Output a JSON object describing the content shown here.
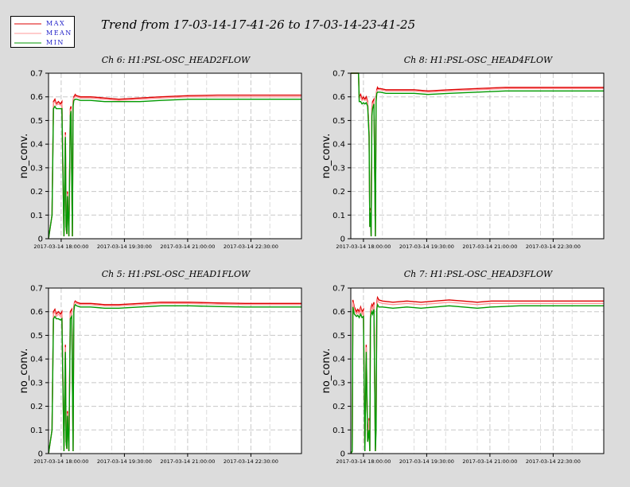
{
  "title": "Trend from 17-03-14-17-41-26 to 17-03-14-23-41-25",
  "legend": [
    {
      "label": "MAX",
      "color": "#dd0000"
    },
    {
      "label": "MEAN",
      "color": "#ff9999"
    },
    {
      "label": "MIN",
      "color": "#009900"
    }
  ],
  "chart_data": [
    {
      "type": "line",
      "title": "Ch 6: H1:PSL-OSC_HEAD2FLOW",
      "ylabel": "no_conv.",
      "xlabel": "",
      "ylim": [
        0,
        0.7
      ],
      "yticks": [
        "0",
        "0.1",
        "0.2",
        "0.3",
        "0.4",
        "0.5",
        "0.6",
        "0.7"
      ],
      "xlim": [
        0,
        360
      ],
      "xticks": [
        {
          "x": 18,
          "label": "2017-03-14 18:00:00"
        },
        {
          "x": 108,
          "label": "2017-03-14 19:30:00"
        },
        {
          "x": 198,
          "label": "2017-03-14 21:00:00"
        },
        {
          "x": 288,
          "label": "2017-03-14 22:30:00"
        }
      ],
      "grid": true,
      "series": [
        {
          "name": "MAX",
          "x": [
            0,
            5,
            7,
            9,
            11,
            14,
            17,
            19,
            22,
            24,
            25,
            26,
            27,
            29,
            31,
            32,
            34,
            35,
            36,
            38,
            39,
            40,
            45,
            60,
            80,
            100,
            130,
            160,
            200,
            240,
            280,
            320,
            360
          ],
          "values": [
            0,
            0.1,
            0.58,
            0.59,
            0.57,
            0.58,
            0.57,
            0.58,
            0.01,
            0.45,
            0.05,
            0.02,
            0.2,
            0.01,
            0.55,
            0.56,
            0.01,
            0.58,
            0.6,
            0.61,
            0.605,
            0.605,
            0.6,
            0.6,
            0.595,
            0.59,
            0.595,
            0.6,
            0.605,
            0.607,
            0.607,
            0.607,
            0.607
          ]
        },
        {
          "name": "MEAN",
          "x": [
            0,
            5,
            7,
            9,
            11,
            14,
            17,
            19,
            22,
            24,
            25,
            26,
            27,
            29,
            31,
            32,
            34,
            35,
            36,
            38,
            39,
            40,
            45,
            60,
            80,
            100,
            130,
            160,
            200,
            240,
            280,
            320,
            360
          ],
          "values": [
            0,
            0.1,
            0.575,
            0.58,
            0.565,
            0.57,
            0.565,
            0.57,
            0.01,
            0.44,
            0.05,
            0.02,
            0.19,
            0.01,
            0.54,
            0.55,
            0.01,
            0.57,
            0.595,
            0.6,
            0.6,
            0.6,
            0.595,
            0.595,
            0.59,
            0.585,
            0.59,
            0.595,
            0.6,
            0.6,
            0.6,
            0.6,
            0.6
          ]
        },
        {
          "name": "MIN",
          "x": [
            0,
            5,
            7,
            9,
            11,
            14,
            17,
            19,
            22,
            24,
            25,
            26,
            27,
            29,
            31,
            32,
            34,
            35,
            36,
            38,
            39,
            40,
            45,
            60,
            80,
            100,
            130,
            160,
            200,
            240,
            280,
            320,
            360
          ],
          "values": [
            0,
            0.1,
            0.55,
            0.56,
            0.55,
            0.55,
            0.55,
            0.55,
            0.01,
            0.43,
            0.05,
            0.02,
            0.18,
            0.01,
            0.52,
            0.54,
            0.01,
            0.56,
            0.585,
            0.59,
            0.59,
            0.59,
            0.585,
            0.585,
            0.58,
            0.58,
            0.58,
            0.585,
            0.59,
            0.59,
            0.59,
            0.59,
            0.59
          ]
        }
      ]
    },
    {
      "type": "line",
      "title": "Ch 8: H1:PSL-OSC_HEAD4FLOW",
      "ylabel": "no_conv.",
      "xlabel": "",
      "ylim": [
        0,
        0.7
      ],
      "yticks": [
        "0",
        "0.1",
        "0.2",
        "0.3",
        "0.4",
        "0.5",
        "0.6",
        "0.7"
      ],
      "xlim": [
        0,
        360
      ],
      "xticks": [
        {
          "x": 18,
          "label": "2017-03-14 18:00:00"
        },
        {
          "x": 108,
          "label": "2017-03-14 19:30:00"
        },
        {
          "x": 198,
          "label": "2017-03-14 21:00:00"
        },
        {
          "x": 288,
          "label": "2017-03-14 22:30:00"
        }
      ],
      "grid": true,
      "series": [
        {
          "name": "MAX",
          "x": [
            0,
            11,
            12,
            14,
            16,
            18,
            20,
            22,
            24,
            26,
            27,
            28,
            29,
            30,
            31,
            33,
            35,
            36,
            37,
            38,
            39,
            42,
            50,
            70,
            90,
            110,
            140,
            180,
            220,
            260,
            300,
            330,
            360
          ],
          "values": [
            0.7,
            0.7,
            0.6,
            0.61,
            0.59,
            0.6,
            0.59,
            0.6,
            0.58,
            0.45,
            0.05,
            0.13,
            0.01,
            0.55,
            0.58,
            0.59,
            0.01,
            0.6,
            0.63,
            0.64,
            0.635,
            0.635,
            0.63,
            0.63,
            0.63,
            0.625,
            0.63,
            0.635,
            0.64,
            0.64,
            0.64,
            0.64,
            0.64
          ]
        },
        {
          "name": "MEAN",
          "x": [
            0,
            11,
            12,
            14,
            16,
            18,
            20,
            22,
            24,
            26,
            27,
            28,
            29,
            30,
            31,
            33,
            35,
            36,
            37,
            38,
            39,
            42,
            50,
            70,
            90,
            110,
            140,
            180,
            220,
            260,
            300,
            330,
            360
          ],
          "values": [
            0.7,
            0.7,
            0.595,
            0.6,
            0.585,
            0.59,
            0.585,
            0.59,
            0.575,
            0.44,
            0.05,
            0.12,
            0.01,
            0.54,
            0.57,
            0.58,
            0.01,
            0.59,
            0.625,
            0.63,
            0.63,
            0.63,
            0.625,
            0.625,
            0.625,
            0.62,
            0.625,
            0.63,
            0.635,
            0.635,
            0.635,
            0.635,
            0.635
          ]
        },
        {
          "name": "MIN",
          "x": [
            0,
            11,
            12,
            14,
            16,
            18,
            20,
            22,
            24,
            26,
            27,
            28,
            29,
            30,
            31,
            33,
            35,
            36,
            37,
            38,
            39,
            42,
            50,
            70,
            90,
            110,
            140,
            180,
            220,
            260,
            300,
            330,
            360
          ],
          "values": [
            0.7,
            0.7,
            0.58,
            0.58,
            0.57,
            0.575,
            0.57,
            0.575,
            0.56,
            0.43,
            0.05,
            0.11,
            0.01,
            0.52,
            0.55,
            0.57,
            0.01,
            0.58,
            0.615,
            0.62,
            0.62,
            0.62,
            0.615,
            0.615,
            0.615,
            0.61,
            0.615,
            0.62,
            0.625,
            0.625,
            0.625,
            0.625,
            0.625
          ]
        }
      ]
    },
    {
      "type": "line",
      "title": "Ch 5: H1:PSL-OSC_HEAD1FLOW",
      "ylabel": "no_conv.",
      "xlabel": "",
      "ylim": [
        0,
        0.7
      ],
      "yticks": [
        "0",
        "0.1",
        "0.2",
        "0.3",
        "0.4",
        "0.5",
        "0.6",
        "0.7"
      ],
      "xlim": [
        0,
        360
      ],
      "xticks": [
        {
          "x": 18,
          "label": "2017-03-14 18:00:00"
        },
        {
          "x": 108,
          "label": "2017-03-14 19:30:00"
        },
        {
          "x": 198,
          "label": "2017-03-14 21:00:00"
        },
        {
          "x": 288,
          "label": "2017-03-14 22:30:00"
        }
      ],
      "grid": true,
      "series": [
        {
          "name": "MAX",
          "x": [
            0,
            5,
            7,
            9,
            11,
            14,
            17,
            19,
            22,
            24,
            25,
            26,
            27,
            29,
            31,
            33,
            35,
            36,
            37,
            38,
            40,
            45,
            60,
            80,
            100,
            130,
            160,
            200,
            240,
            280,
            320,
            360
          ],
          "values": [
            0,
            0.1,
            0.6,
            0.61,
            0.59,
            0.6,
            0.59,
            0.6,
            0.01,
            0.46,
            0.05,
            0.02,
            0.18,
            0.01,
            0.6,
            0.61,
            0.01,
            0.62,
            0.64,
            0.645,
            0.64,
            0.635,
            0.635,
            0.63,
            0.63,
            0.635,
            0.64,
            0.64,
            0.637,
            0.635,
            0.635,
            0.635
          ]
        },
        {
          "name": "MEAN",
          "x": [
            0,
            5,
            7,
            9,
            11,
            14,
            17,
            19,
            22,
            24,
            25,
            26,
            27,
            29,
            31,
            33,
            35,
            36,
            37,
            38,
            40,
            45,
            60,
            80,
            100,
            130,
            160,
            200,
            240,
            280,
            320,
            360
          ],
          "values": [
            0,
            0.1,
            0.59,
            0.6,
            0.58,
            0.59,
            0.58,
            0.59,
            0.01,
            0.45,
            0.05,
            0.02,
            0.17,
            0.01,
            0.59,
            0.6,
            0.01,
            0.61,
            0.635,
            0.64,
            0.635,
            0.63,
            0.63,
            0.625,
            0.625,
            0.63,
            0.635,
            0.635,
            0.632,
            0.63,
            0.63,
            0.63
          ]
        },
        {
          "name": "MIN",
          "x": [
            0,
            5,
            7,
            9,
            11,
            14,
            17,
            19,
            22,
            24,
            25,
            26,
            27,
            29,
            31,
            33,
            35,
            36,
            37,
            38,
            40,
            45,
            60,
            80,
            100,
            130,
            160,
            200,
            240,
            280,
            320,
            360
          ],
          "values": [
            0,
            0.1,
            0.57,
            0.58,
            0.57,
            0.57,
            0.565,
            0.57,
            0.01,
            0.43,
            0.05,
            0.02,
            0.16,
            0.01,
            0.57,
            0.58,
            0.01,
            0.6,
            0.625,
            0.63,
            0.625,
            0.62,
            0.62,
            0.615,
            0.615,
            0.62,
            0.625,
            0.625,
            0.622,
            0.62,
            0.62,
            0.62
          ]
        }
      ]
    },
    {
      "type": "line",
      "title": "Ch 7: H1:PSL-OSC_HEAD3FLOW",
      "ylabel": "no_conv.",
      "xlabel": "",
      "ylim": [
        0,
        0.7
      ],
      "yticks": [
        "0",
        "0.1",
        "0.2",
        "0.3",
        "0.4",
        "0.5",
        "0.6",
        "0.7"
      ],
      "xlim": [
        0,
        360
      ],
      "xticks": [
        {
          "x": 18,
          "label": "2017-03-14 18:00:00"
        },
        {
          "x": 108,
          "label": "2017-03-14 19:30:00"
        },
        {
          "x": 198,
          "label": "2017-03-14 21:00:00"
        },
        {
          "x": 288,
          "label": "2017-03-14 22:30:00"
        }
      ],
      "grid": true,
      "series": [
        {
          "name": "MAX",
          "x": [
            0,
            2,
            3,
            5,
            8,
            10,
            12,
            14,
            16,
            18,
            20,
            22,
            24,
            26,
            27,
            28,
            29,
            30,
            31,
            33,
            35,
            36,
            37,
            38,
            40,
            45,
            60,
            80,
            100,
            120,
            140,
            160,
            180,
            200,
            240,
            280,
            320,
            360
          ],
          "values": [
            0,
            0.01,
            0.65,
            0.62,
            0.6,
            0.61,
            0.6,
            0.62,
            0.6,
            0.61,
            0.01,
            0.46,
            0.05,
            0.15,
            0.01,
            0.6,
            0.62,
            0.63,
            0.62,
            0.64,
            0.01,
            0.15,
            0.64,
            0.66,
            0.65,
            0.645,
            0.64,
            0.645,
            0.64,
            0.645,
            0.65,
            0.645,
            0.64,
            0.645,
            0.645,
            0.645,
            0.645,
            0.645
          ]
        },
        {
          "name": "MEAN",
          "x": [
            0,
            2,
            3,
            5,
            8,
            10,
            12,
            14,
            16,
            18,
            20,
            22,
            24,
            26,
            27,
            28,
            29,
            30,
            31,
            33,
            35,
            36,
            37,
            38,
            40,
            45,
            60,
            80,
            100,
            120,
            140,
            160,
            180,
            200,
            240,
            280,
            320,
            360
          ],
          "values": [
            0,
            0.01,
            0.64,
            0.61,
            0.59,
            0.6,
            0.59,
            0.61,
            0.59,
            0.6,
            0.01,
            0.45,
            0.05,
            0.14,
            0.01,
            0.59,
            0.61,
            0.62,
            0.61,
            0.63,
            0.01,
            0.14,
            0.63,
            0.65,
            0.64,
            0.635,
            0.63,
            0.635,
            0.63,
            0.635,
            0.64,
            0.635,
            0.63,
            0.635,
            0.635,
            0.635,
            0.635,
            0.635
          ]
        },
        {
          "name": "MIN",
          "x": [
            0,
            2,
            3,
            5,
            8,
            10,
            12,
            14,
            16,
            18,
            20,
            22,
            24,
            26,
            27,
            28,
            29,
            30,
            31,
            33,
            35,
            36,
            37,
            38,
            40,
            45,
            60,
            80,
            100,
            120,
            140,
            160,
            180,
            200,
            240,
            280,
            320,
            360
          ],
          "values": [
            0,
            0.01,
            0.62,
            0.59,
            0.58,
            0.585,
            0.575,
            0.59,
            0.575,
            0.58,
            0.01,
            0.43,
            0.05,
            0.1,
            0.01,
            0.57,
            0.59,
            0.6,
            0.59,
            0.61,
            0.01,
            0.1,
            0.61,
            0.63,
            0.62,
            0.62,
            0.615,
            0.62,
            0.615,
            0.62,
            0.625,
            0.62,
            0.615,
            0.62,
            0.625,
            0.625,
            0.625,
            0.625
          ]
        }
      ]
    }
  ]
}
